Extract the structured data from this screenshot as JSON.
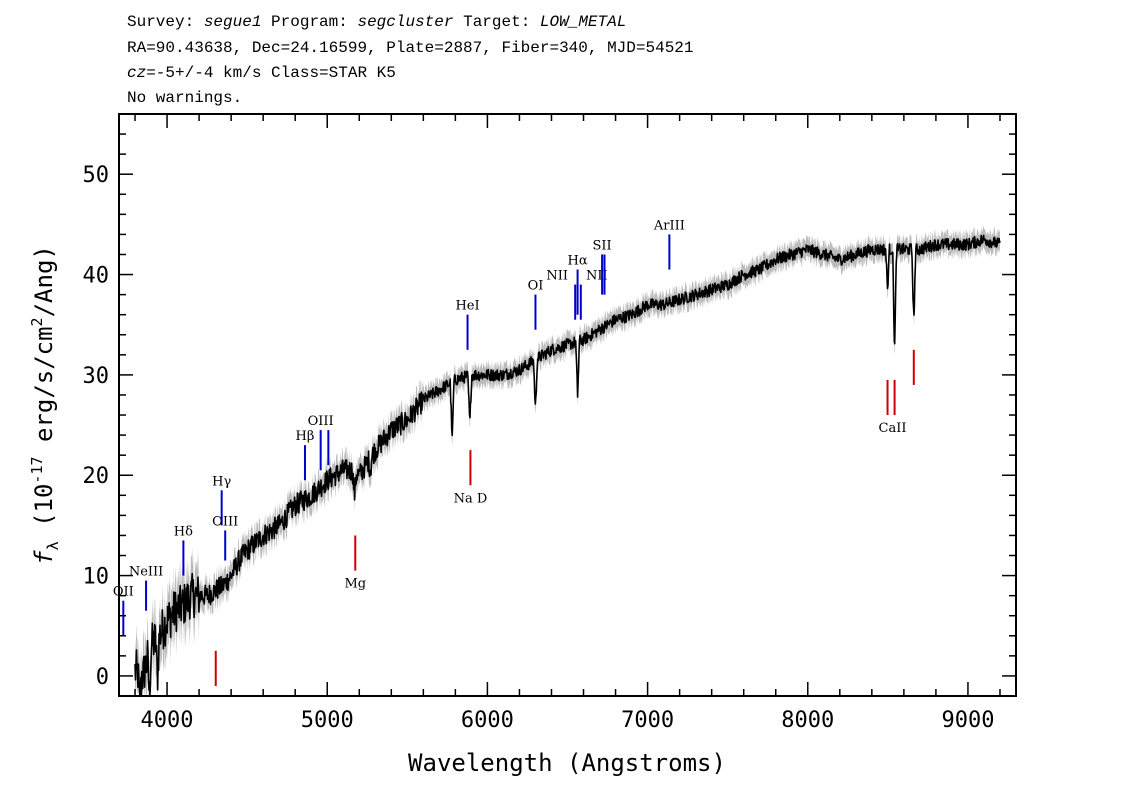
{
  "header": {
    "survey_label": "Survey:",
    "survey_value": "segue1",
    "program_label": "Program:",
    "program_value": "segcluster",
    "target_label": "Target:",
    "target_value": "LOW_METAL",
    "line2": "RA=90.43638, Dec=24.16599, Plate=2887, Fiber=340, MJD=54521",
    "cz_symbol": "cz",
    "cz_text": "=-5+/-4",
    "cz_units": "km/s Class=STAR K5",
    "line4": "No warnings."
  },
  "chart_data": {
    "type": "line",
    "xlabel": "Wavelength (Angstroms)",
    "ylabel_prefix": "f",
    "ylabel_sub": "λ",
    "ylabel_mid": " (10",
    "ylabel_exp": "-17",
    "ylabel_units": " erg/s/cm",
    "ylabel_exp2": "2",
    "ylabel_tail": "/Ang)",
    "xlim": [
      3700,
      9300
    ],
    "ylim": [
      -2,
      56
    ],
    "x_ticks": [
      4000,
      5000,
      6000,
      7000,
      8000,
      9000
    ],
    "x_tick_labels": [
      "4000",
      "5000",
      "6000",
      "7000",
      "8000",
      "9000"
    ],
    "y_ticks": [
      0,
      10,
      20,
      30,
      40,
      50
    ],
    "y_tick_labels": [
      "0",
      "10",
      "20",
      "30",
      "40",
      "50"
    ],
    "series": [
      {
        "color": "#000000",
        "error_color": "#bbbbbb",
        "x": [
          3800,
          3850,
          3900,
          3950,
          4000,
          4050,
          4100,
          4150,
          4200,
          4250,
          4300,
          4350,
          4400,
          4450,
          4500,
          4600,
          4700,
          4800,
          4900,
          5000,
          5100,
          5150,
          5200,
          5300,
          5400,
          5500,
          5600,
          5700,
          5800,
          5900,
          6000,
          6100,
          6200,
          6300,
          6400,
          6500,
          6600,
          6700,
          6800,
          6900,
          7000,
          7100,
          7200,
          7300,
          7400,
          7500,
          7600,
          7700,
          7800,
          7900,
          8000,
          8100,
          8200,
          8300,
          8400,
          8500,
          8600,
          8700,
          8800,
          8900,
          9000,
          9100,
          9200
        ],
        "y": [
          0.5,
          0.0,
          3.0,
          4.0,
          5.5,
          6.5,
          7.0,
          8.0,
          8.0,
          8.0,
          8.5,
          9.0,
          10.0,
          11.5,
          12.5,
          14.0,
          15.0,
          17.0,
          18.0,
          19.5,
          20.5,
          20.5,
          20.0,
          22.5,
          24.5,
          25.5,
          27.5,
          28.5,
          29.5,
          30.0,
          30.0,
          30.0,
          30.5,
          31.5,
          32.5,
          33.0,
          33.5,
          34.5,
          35.5,
          36.0,
          37.0,
          37.0,
          37.5,
          38.0,
          38.5,
          39.0,
          40.0,
          40.5,
          41.5,
          42.0,
          42.5,
          42.0,
          41.5,
          42.0,
          42.5,
          42.5,
          42.5,
          42.5,
          43.0,
          43.0,
          43.0,
          43.5,
          43.0
        ],
        "absorption_features": [
          {
            "x": 3830,
            "y": -3.0
          },
          {
            "x": 3890,
            "y": -2.0
          },
          {
            "x": 3940,
            "y": 0.0
          },
          {
            "x": 5170,
            "y": 18.0
          },
          {
            "x": 5270,
            "y": 20.5
          },
          {
            "x": 5780,
            "y": 23.5
          },
          {
            "x": 5890,
            "y": 25.0
          },
          {
            "x": 6300,
            "y": 26.5
          },
          {
            "x": 6563,
            "y": 28.0
          },
          {
            "x": 8498,
            "y": 38.5
          },
          {
            "x": 8542,
            "y": 32.0
          },
          {
            "x": 8662,
            "y": 35.0
          }
        ]
      }
    ],
    "emission_lines": [
      {
        "label": "OII",
        "x": 3727,
        "y_range": [
          4,
          7.5
        ]
      },
      {
        "label": "NeIII",
        "x": 3869,
        "y_range": [
          6.5,
          9.5
        ]
      },
      {
        "label": "Hδ",
        "x": 4102,
        "y_range": [
          10,
          13.5
        ]
      },
      {
        "label": "Hγ",
        "x": 4341,
        "y_range": [
          15,
          18.5
        ]
      },
      {
        "label": "OIII",
        "x": 4363,
        "y_range": [
          11.5,
          14.5
        ]
      },
      {
        "label": "Hβ",
        "x": 4861,
        "y_range": [
          19.5,
          23
        ]
      },
      {
        "label": "OIII",
        "x": 4959,
        "y_range": [
          20.5,
          24.5
        ]
      },
      {
        "label": "",
        "x": 5007,
        "y_range": [
          21,
          24.5
        ]
      },
      {
        "label": "HeI",
        "x": 5876,
        "y_range": [
          32.5,
          36
        ]
      },
      {
        "label": "OI",
        "x": 6300,
        "y_range": [
          34.5,
          38
        ]
      },
      {
        "label": "NII",
        "x": 6548,
        "y_range": [
          35.5,
          39
        ]
      },
      {
        "label": "Hα",
        "x": 6563,
        "y_range": [
          36,
          40.5
        ]
      },
      {
        "label": "NII",
        "x": 6583,
        "y_range": [
          35.5,
          39
        ]
      },
      {
        "label": "SII",
        "x": 6716,
        "y_range": [
          38,
          42
        ]
      },
      {
        "label": "",
        "x": 6731,
        "y_range": [
          38,
          42
        ]
      },
      {
        "label": "ArIII",
        "x": 7136,
        "y_range": [
          40.5,
          44
        ]
      }
    ],
    "absorption_lines": [
      {
        "label": "",
        "x": 4304,
        "y_range": [
          -1,
          2.5
        ]
      },
      {
        "label": "Mg",
        "x": 5175,
        "y_range": [
          10.5,
          14
        ]
      },
      {
        "label": "Na D",
        "x": 5894,
        "y_range": [
          19,
          22.5
        ]
      },
      {
        "label": "CaII",
        "x": 8498,
        "y_range": [
          26,
          29.5
        ]
      },
      {
        "label": "",
        "x": 8542,
        "y_range": [
          26,
          29.5
        ]
      },
      {
        "label": "",
        "x": 8662,
        "y_range": [
          29,
          32.5
        ]
      }
    ],
    "emission_line_color": "#0000cc",
    "absorption_line_color": "#cc0000"
  }
}
